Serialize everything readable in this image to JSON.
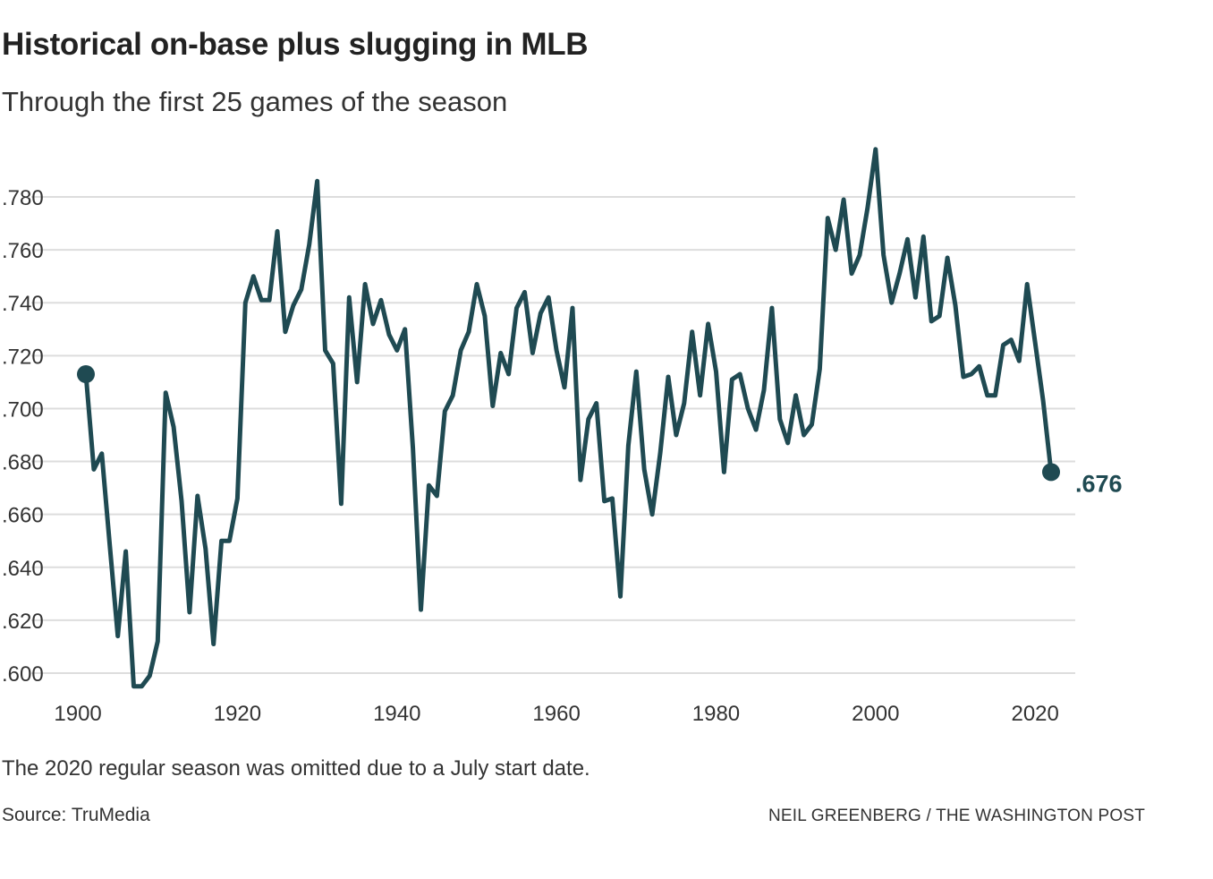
{
  "title": "Historical on-base plus slugging in MLB",
  "subtitle": "Through the first 25 games of the season",
  "note": "The 2020 regular season was omitted due to a July start date.",
  "source": "Source: TruMedia",
  "credit": "NEIL GREENBERG / THE WASHINGTON POST",
  "colors": {
    "line": "#1f4a52",
    "grid": "#dddddd",
    "text": "#333333"
  },
  "chart_data": {
    "type": "line",
    "title": "Historical on-base plus slugging in MLB",
    "subtitle": "Through the first 25 games of the season",
    "xlabel": "",
    "ylabel": "",
    "xlim": [
      1900,
      2022
    ],
    "ylim": [
      0.595,
      0.798
    ],
    "x_ticks": [
      1900,
      1920,
      1940,
      1960,
      1980,
      2000,
      2020
    ],
    "x_tick_labels": [
      "1900",
      "1920",
      "1940",
      "1960",
      "1980",
      "2000",
      "2020"
    ],
    "y_ticks": [
      0.6,
      0.62,
      0.64,
      0.66,
      0.68,
      0.7,
      0.72,
      0.74,
      0.76,
      0.78
    ],
    "y_tick_labels": [
      ".600",
      ".620",
      ".640",
      ".660",
      ".680",
      ".700",
      ".720",
      ".740",
      ".760",
      ".780"
    ],
    "grid": "horizontal",
    "legend": "none",
    "end_label": ".676",
    "series": [
      {
        "x": [
          1901,
          1902,
          1903,
          1904,
          1905,
          1906,
          1907,
          1908,
          1909,
          1910,
          1911,
          1912,
          1913,
          1914,
          1915,
          1916,
          1917,
          1918,
          1919,
          1920,
          1921,
          1922,
          1923,
          1924,
          1925,
          1926,
          1927,
          1928,
          1929,
          1930,
          1931,
          1932,
          1933,
          1934,
          1935,
          1936,
          1937,
          1938,
          1939,
          1940,
          1941,
          1942,
          1943,
          1944,
          1945,
          1946,
          1947,
          1948,
          1949,
          1950,
          1951,
          1952,
          1953,
          1954,
          1955,
          1956,
          1957,
          1958,
          1959,
          1960,
          1961,
          1962,
          1963,
          1964,
          1965,
          1966,
          1967,
          1968,
          1969,
          1970,
          1971,
          1972,
          1973,
          1974,
          1975,
          1976,
          1977,
          1978,
          1979,
          1980,
          1981,
          1982,
          1983,
          1984,
          1985,
          1986,
          1987,
          1988,
          1989,
          1990,
          1991,
          1992,
          1993,
          1994,
          1995,
          1996,
          1997,
          1998,
          1999,
          2000,
          2001,
          2002,
          2003,
          2004,
          2005,
          2006,
          2007,
          2008,
          2009,
          2010,
          2011,
          2012,
          2013,
          2014,
          2015,
          2016,
          2017,
          2018,
          2019,
          2021,
          2022
        ],
        "values": [
          0.713,
          0.677,
          0.683,
          0.648,
          0.614,
          0.646,
          0.595,
          0.595,
          0.599,
          0.612,
          0.706,
          0.693,
          0.665,
          0.623,
          0.667,
          0.647,
          0.611,
          0.65,
          0.65,
          0.666,
          0.74,
          0.75,
          0.741,
          0.741,
          0.767,
          0.729,
          0.739,
          0.745,
          0.762,
          0.786,
          0.722,
          0.717,
          0.664,
          0.742,
          0.71,
          0.747,
          0.732,
          0.741,
          0.728,
          0.722,
          0.73,
          0.685,
          0.624,
          0.671,
          0.667,
          0.699,
          0.705,
          0.722,
          0.729,
          0.747,
          0.735,
          0.701,
          0.721,
          0.713,
          0.738,
          0.744,
          0.721,
          0.736,
          0.742,
          0.722,
          0.708,
          0.738,
          0.673,
          0.696,
          0.702,
          0.665,
          0.666,
          0.629,
          0.686,
          0.714,
          0.677,
          0.66,
          0.683,
          0.712,
          0.69,
          0.702,
          0.729,
          0.705,
          0.732,
          0.714,
          0.676,
          0.711,
          0.713,
          0.7,
          0.692,
          0.707,
          0.738,
          0.696,
          0.687,
          0.705,
          0.69,
          0.694,
          0.715,
          0.772,
          0.76,
          0.779,
          0.751,
          0.758,
          0.776,
          0.798,
          0.758,
          0.74,
          0.751,
          0.764,
          0.742,
          0.765,
          0.733,
          0.735,
          0.757,
          0.739,
          0.712,
          0.713,
          0.716,
          0.705,
          0.705,
          0.724,
          0.726,
          0.718,
          0.747,
          0.703,
          0.676
        ]
      }
    ]
  }
}
